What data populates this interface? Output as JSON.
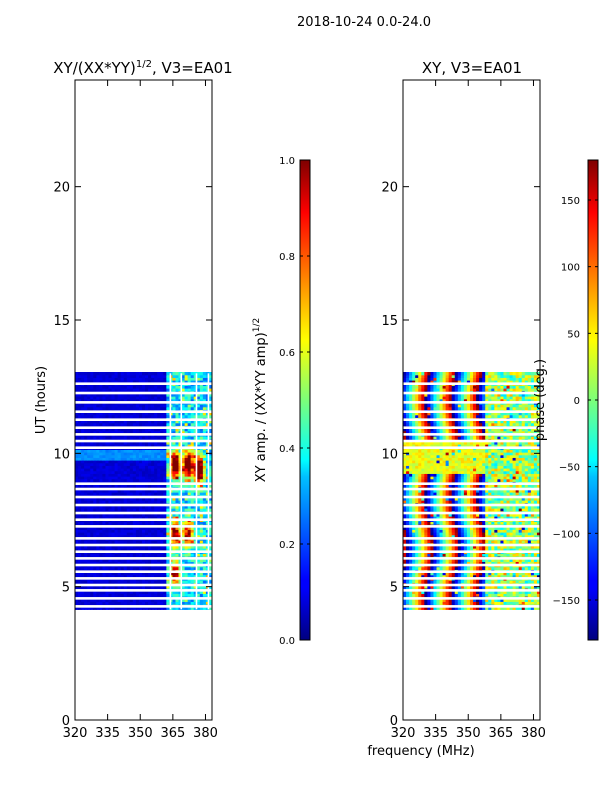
{
  "suptitle": "2018-10-24 0.0-24.0",
  "shared_xlabel": "frequency (MHz)",
  "chart_data": [
    {
      "type": "heatmap",
      "title_prefix": "XY/(XX*YY)",
      "title_sup": "1/2",
      "title_suffix": ", V3=EA01",
      "ylabel": "UT (hours)",
      "xlim": [
        320,
        383
      ],
      "ylim": [
        0,
        24
      ],
      "xticks": [
        320,
        335,
        350,
        365,
        380
      ],
      "yticks": [
        0,
        5,
        10,
        15,
        20
      ],
      "data_time_range_hours": [
        4.15,
        13.0
      ],
      "rfi_band_MHz": [
        362,
        383
      ],
      "hot_spots": [
        {
          "freq_MHz": 366,
          "ut_hours": 9.6,
          "value": 0.95
        },
        {
          "freq_MHz": 372,
          "ut_hours": 9.6,
          "value": 0.9
        },
        {
          "freq_MHz": 377,
          "ut_hours": 9.4,
          "value": 0.85
        },
        {
          "freq_MHz": 366,
          "ut_hours": 7.0,
          "value": 0.7
        },
        {
          "freq_MHz": 372,
          "ut_hours": 7.0,
          "value": 0.65
        },
        {
          "freq_MHz": 366,
          "ut_hours": 5.5,
          "value": 0.6
        }
      ],
      "colorbar": {
        "label_prefix": "XY amp. / (XX*YY amp)",
        "label_sup": "1/2",
        "range": [
          0.0,
          1.0
        ],
        "ticks": [
          "0.0",
          "0.2",
          "0.4",
          "0.6",
          "0.8",
          "1.0"
        ]
      }
    },
    {
      "type": "heatmap",
      "title": "XY, V3=EA01",
      "xlim": [
        320,
        383
      ],
      "ylim": [
        0,
        24
      ],
      "xticks": [
        320,
        335,
        350,
        365,
        380
      ],
      "yticks": [
        0,
        5,
        10,
        15,
        20
      ],
      "data_time_range_hours": [
        4.15,
        13.0
      ],
      "phase_wrap_period_MHz": 12,
      "colorbar": {
        "label": "phase (deg.)",
        "range": [
          -180,
          180
        ],
        "ticks": [
          "−150",
          "−100",
          "−50",
          "0",
          "50",
          "100",
          "150"
        ]
      }
    }
  ]
}
